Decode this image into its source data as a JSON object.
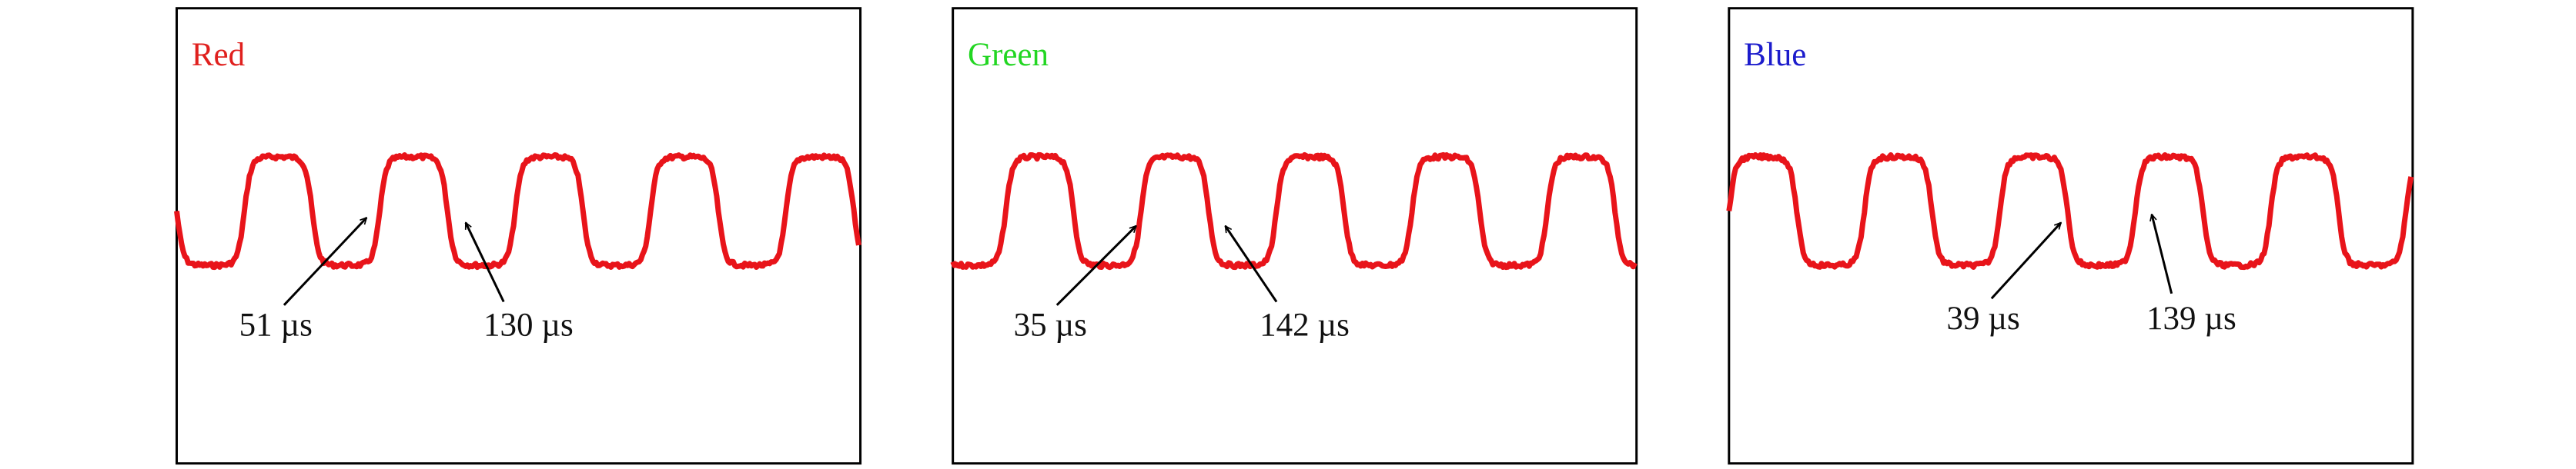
{
  "panels": [
    {
      "title": "Red",
      "annotations": [
        {
          "label": "51 µs"
        },
        {
          "label": "130 µs"
        }
      ]
    },
    {
      "title": "Green",
      "annotations": [
        {
          "label": "35 µs"
        },
        {
          "label": "142 µs"
        }
      ]
    },
    {
      "title": "Blue",
      "annotations": [
        {
          "label": "39 µs"
        },
        {
          "label": "139 µs"
        }
      ]
    }
  ]
}
